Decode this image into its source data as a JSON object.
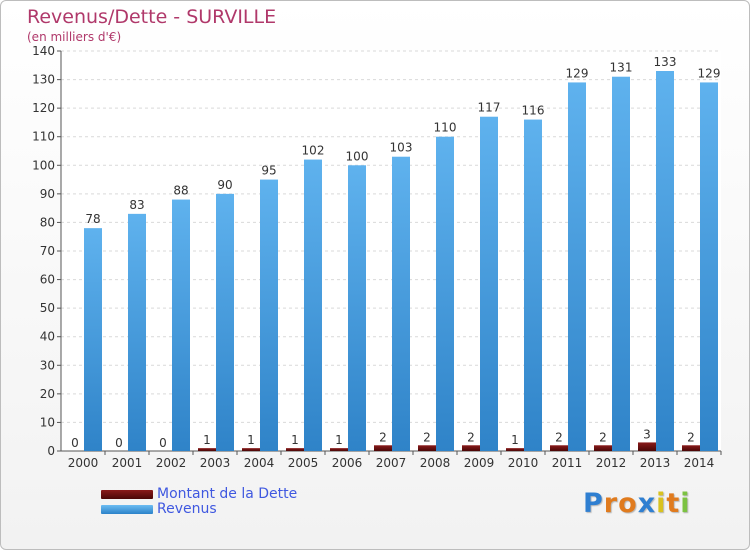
{
  "chart_data": {
    "type": "bar",
    "title": "Revenus/Dette - SURVILLE",
    "subtitle": "(en milliers d'€)",
    "categories": [
      "2000",
      "2001",
      "2002",
      "2003",
      "2004",
      "2005",
      "2006",
      "2007",
      "2008",
      "2009",
      "2010",
      "2011",
      "2012",
      "2013",
      "2014"
    ],
    "series": [
      {
        "name": "Montant de la Dette",
        "color": "#6b0f0f",
        "values": [
          0,
          0,
          0,
          1,
          1,
          1,
          1,
          2,
          2,
          2,
          1,
          2,
          2,
          3,
          2
        ]
      },
      {
        "name": "Revenus",
        "color": "#4aa3e6",
        "values": [
          78,
          83,
          88,
          90,
          95,
          102,
          100,
          103,
          110,
          117,
          116,
          129,
          131,
          133,
          129
        ]
      }
    ],
    "ylim": [
      0,
      140
    ],
    "yticks": [
      0,
      10,
      20,
      30,
      40,
      50,
      60,
      70,
      80,
      90,
      100,
      110,
      120,
      130,
      140
    ],
    "grid": true,
    "legend_position": "bottom-left"
  },
  "logo": {
    "text": "Proxiti",
    "letters": [
      "P",
      "r",
      "o",
      "x",
      "i",
      "t",
      "i"
    ],
    "colors": [
      "#2f7fd1",
      "#e07b1e",
      "#e07b1e",
      "#2f7fd1",
      "#d9c21f",
      "#e07b1e",
      "#7cc242"
    ]
  }
}
